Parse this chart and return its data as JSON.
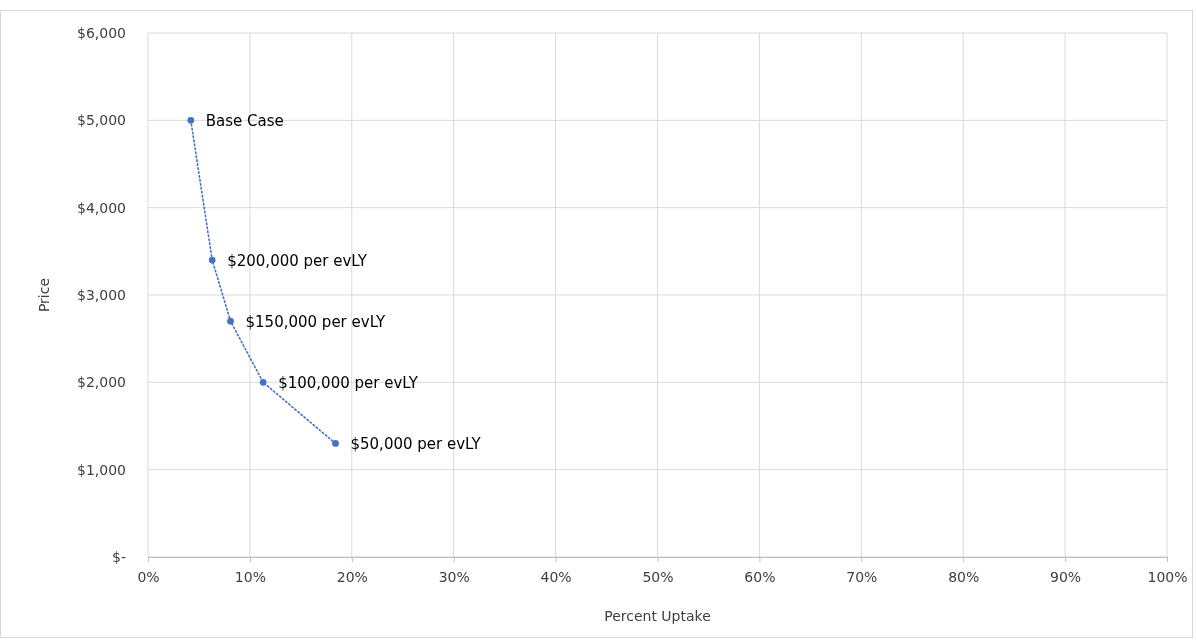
{
  "chart_data": {
    "type": "line",
    "xlabel": "Percent Uptake",
    "ylabel": "Price",
    "x": [
      4.2,
      6.3,
      8.1,
      11.3,
      18.4
    ],
    "series": [
      {
        "color": "#4472c4",
        "values": [
          5000,
          3400,
          2700,
          2000,
          1300
        ]
      }
    ],
    "xlim": [
      0,
      100
    ],
    "xticks": [
      {
        "value": 0,
        "label": "0%"
      },
      {
        "value": 10,
        "label": "10%"
      },
      {
        "value": 20,
        "label": "20%"
      },
      {
        "value": 30,
        "label": "30%"
      },
      {
        "value": 40,
        "label": "40%"
      },
      {
        "value": 50,
        "label": "50%"
      },
      {
        "value": 60,
        "label": "60%"
      },
      {
        "value": 70,
        "label": "70%"
      },
      {
        "value": 80,
        "label": "80%"
      },
      {
        "value": 90,
        "label": "90%"
      },
      {
        "value": 100,
        "label": "100%"
      }
    ],
    "ylim": [
      0,
      6000
    ],
    "yticks": [
      {
        "value": 0,
        "label": "$-"
      },
      {
        "value": 1000,
        "label": "$1,000"
      },
      {
        "value": 2000,
        "label": "$2,000"
      },
      {
        "value": 3000,
        "label": "$3,000"
      },
      {
        "value": 4000,
        "label": "$4,000"
      },
      {
        "value": 5000,
        "label": "$5,000"
      },
      {
        "value": 6000,
        "label": "$6,000"
      }
    ],
    "grid": true,
    "marker": "circle",
    "line_style": "dotted",
    "annotations": [
      {
        "text": "Base Case",
        "x": 4.2,
        "y": 5000
      },
      {
        "text": "$200,000 per evLY",
        "x": 6.3,
        "y": 3400
      },
      {
        "text": "$150,000 per evLY",
        "x": 8.1,
        "y": 2700
      },
      {
        "text": "$100,000 per evLY",
        "x": 11.3,
        "y": 2000
      },
      {
        "text": "$50,000 per evLY",
        "x": 18.4,
        "y": 1300
      }
    ]
  }
}
